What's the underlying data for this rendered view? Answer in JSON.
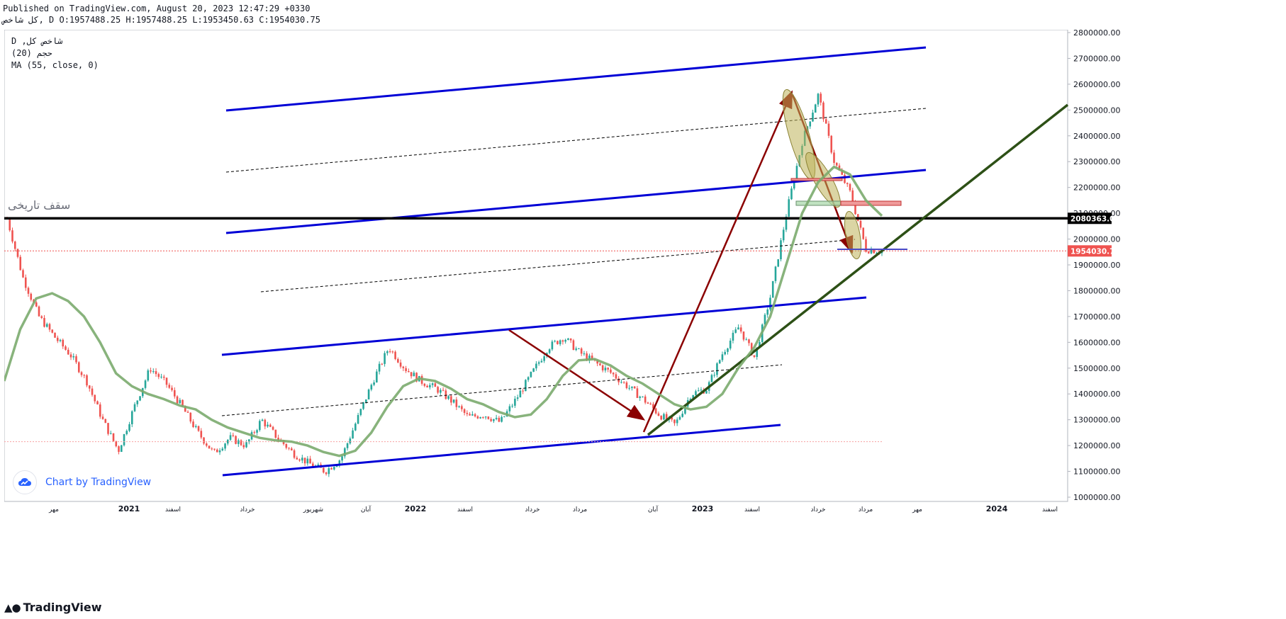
{
  "header": {
    "published": "Published on TradingView.com, August 20, 2023 12:47:29 +0330",
    "ohlc": "کل شاخص, D O:1957488.25 H:1957488.25 L:1953450.63 C:1954030.75"
  },
  "legend": {
    "symbol": "D ,شاخص کل",
    "indicator1": "(20) حجم",
    "indicator2": "MA (55, close, 0)"
  },
  "annotations": {
    "historical_high": "سقف تاریخی"
  },
  "branding": {
    "chart_by": "Chart by TradingView",
    "footer_logo": "TradingView",
    "logo_icon": "tradingview-cloud-icon"
  },
  "colors": {
    "up": "#26a69a",
    "down": "#ef5350",
    "channel": "#0000d6",
    "ma": "#7bab6e",
    "trend": "#2d5016",
    "arrow": "#8b0000",
    "ellipse": "#bdb35a",
    "price_badge": "#ef5350",
    "level_badge": "#000000"
  },
  "chart_data": {
    "type": "line",
    "ylim": [
      1000000,
      2800000
    ],
    "y_ticks": [
      "2800000.00",
      "2700000.00",
      "2600000.00",
      "2500000.00",
      "2400000.00",
      "2300000.00",
      "2200000.00",
      "2100000.00",
      "2000000.00",
      "1900000.00",
      "1800000.00",
      "1700000.00",
      "1600000.00",
      "1500000.00",
      "1400000.00",
      "1300000.00",
      "1200000.00",
      "1100000.00",
      "1000000.00"
    ],
    "x_ticks": [
      "مهر",
      "2021",
      "اسفند",
      "خرداد",
      "شهریور",
      "آبان",
      "2022",
      "اسفند",
      "خرداد",
      "مرداد",
      "آبان",
      "2023",
      "اسفند",
      "خرداد",
      "مرداد",
      "مهر",
      "2024",
      "اسفند"
    ],
    "last_price": "1954030.75",
    "level": "2080363.09",
    "level_value": 2080363.09,
    "last_value": 1954030.75,
    "series": [
      {
        "name": "MA (55, close, 0)",
        "values": [
          1450000,
          1650000,
          1770000,
          1790000,
          1760000,
          1700000,
          1600000,
          1480000,
          1430000,
          1400000,
          1380000,
          1355000,
          1340000,
          1300000,
          1270000,
          1250000,
          1230000,
          1220000,
          1215000,
          1200000,
          1175000,
          1160000,
          1180000,
          1250000,
          1350000,
          1430000,
          1460000,
          1450000,
          1420000,
          1380000,
          1360000,
          1330000,
          1310000,
          1320000,
          1380000,
          1470000,
          1530000,
          1535000,
          1510000,
          1470000,
          1440000,
          1400000,
          1360000,
          1340000,
          1350000,
          1400000,
          1500000,
          1580000,
          1700000,
          1900000,
          2100000,
          2220000,
          2280000,
          2250000,
          2150000,
          2090000
        ]
      },
      {
        "name": "price",
        "values": [
          2080000,
          1850000,
          1700000,
          1620000,
          1550000,
          1450000,
          1300000,
          1180000,
          1350000,
          1500000,
          1440000,
          1350000,
          1250000,
          1170000,
          1230000,
          1200000,
          1300000,
          1230000,
          1170000,
          1130000,
          1100000,
          1150000,
          1300000,
          1450000,
          1580000,
          1500000,
          1450000,
          1420000,
          1370000,
          1310000,
          1320000,
          1290000,
          1380000,
          1480000,
          1580000,
          1620000,
          1560000,
          1520000,
          1480000,
          1430000,
          1380000,
          1320000,
          1280000,
          1400000,
          1420000,
          1560000,
          1660000,
          1540000,
          1780000,
          2100000,
          2380000,
          2560000,
          2300000,
          2180000,
          1960000,
          1954030
        ]
      }
    ]
  }
}
